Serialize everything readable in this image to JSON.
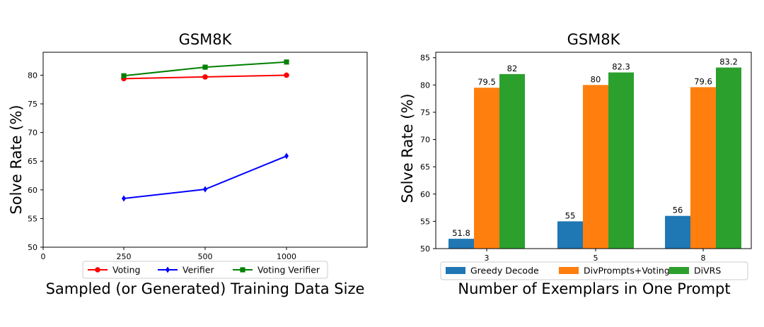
{
  "chart_data": [
    {
      "type": "line",
      "title": "GSM8K",
      "xlabel": "Sampled (or Generated) Training Data Size",
      "ylabel": "Solve Rate (%)",
      "xlim": [
        0,
        2000
      ],
      "ylim": [
        50,
        84
      ],
      "xticks": [
        0,
        250,
        500,
        1000
      ],
      "yticks": [
        50,
        55,
        60,
        65,
        70,
        75,
        80
      ],
      "x": [
        250,
        500,
        1000
      ],
      "series": [
        {
          "name": "Voting",
          "color": "#ff0000",
          "marker": "circle",
          "values": [
            79.4,
            79.7,
            80.0
          ]
        },
        {
          "name": "Verifier",
          "color": "#0000ff",
          "marker": "diamond",
          "values": [
            58.5,
            60.1,
            65.9
          ]
        },
        {
          "name": "Voting Verifier",
          "color": "#008000",
          "marker": "square",
          "values": [
            79.9,
            81.4,
            82.3
          ]
        }
      ],
      "legend": "bottom"
    },
    {
      "type": "bar",
      "title": "GSM8K",
      "xlabel": "Number of Exemplars in One Prompt",
      "ylabel": "Solve Rate (%)",
      "ylim": [
        50,
        86
      ],
      "yticks": [
        50,
        55,
        60,
        65,
        70,
        75,
        80,
        85
      ],
      "categories": [
        "3",
        "5",
        "8"
      ],
      "series": [
        {
          "name": "Greedy Decode",
          "color": "#1f77b4",
          "values": [
            51.8,
            55,
            56
          ]
        },
        {
          "name": "DivPrompts+Voting",
          "color": "#ff7f0e",
          "values": [
            79.5,
            80,
            79.6
          ]
        },
        {
          "name": "DiVRS",
          "color": "#2ca02c",
          "values": [
            82,
            82.3,
            83.2
          ]
        }
      ],
      "legend": "bottom"
    }
  ]
}
